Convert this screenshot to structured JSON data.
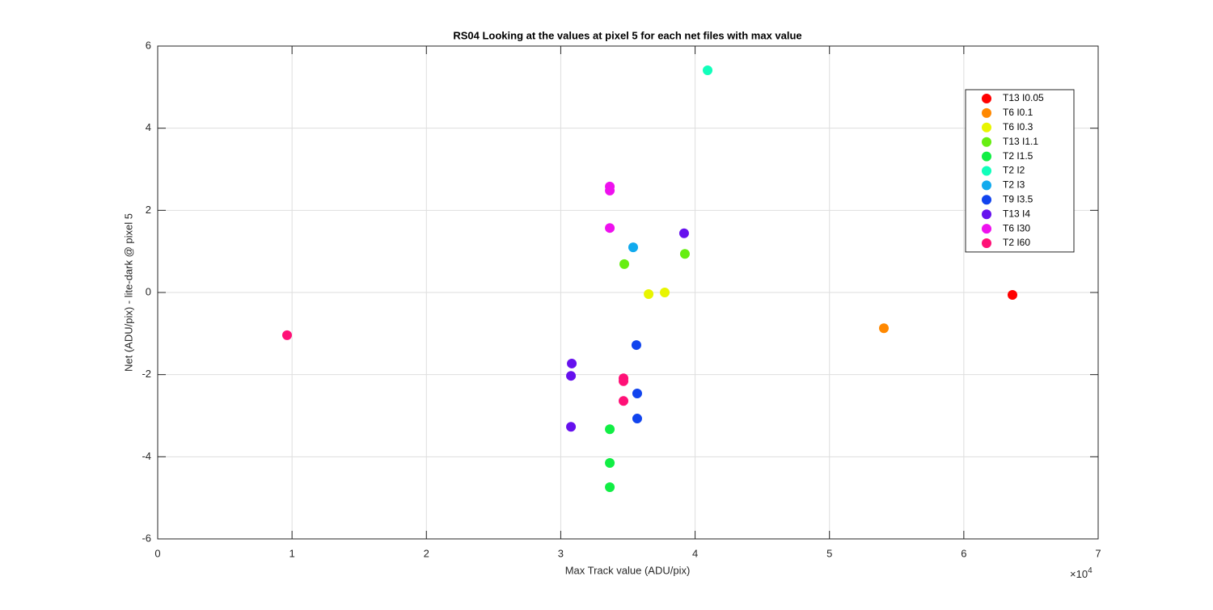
{
  "chart_data": {
    "type": "scatter",
    "title": "RS04  Looking at the values at pixel 5 for each net files with max value",
    "x_label": "Max Track value (ADU/pix)",
    "y_label": "Net (ADU/pix) - lite-dark @ pixel 5",
    "x_multiplier": {
      "base": "×10",
      "exponent": "4"
    },
    "xlim": [
      0,
      7
    ],
    "xticks": [
      0,
      1,
      2,
      3,
      4,
      5,
      6,
      7
    ],
    "ylim": [
      -6,
      6
    ],
    "yticks": [
      -6,
      -4,
      -2,
      0,
      2,
      4,
      6
    ],
    "grid": true,
    "legend": "northeast",
    "series": [
      {
        "name": "T13 I0.05",
        "color": "#ff0000",
        "x": [
          6.362
        ],
        "values": [
          -0.06
        ]
      },
      {
        "name": "T6 I0.1",
        "color": "#ff8800",
        "x": [
          5.405
        ],
        "values": [
          -0.87
        ]
      },
      {
        "name": "T6 I0.3",
        "color": "#e8f500",
        "x": [
          3.654,
          3.774
        ],
        "values": [
          -0.04,
          0.0
        ]
      },
      {
        "name": "T13 I1.1",
        "color": "#66ee11",
        "x": [
          3.473,
          3.924
        ],
        "values": [
          0.69,
          0.94
        ]
      },
      {
        "name": "T2 I1.5",
        "color": "#11ee44",
        "x": [
          3.365,
          3.365,
          3.365
        ],
        "values": [
          -3.33,
          -4.15,
          -4.74
        ]
      },
      {
        "name": "T2 I2",
        "color": "#11ffbb",
        "x": [
          4.093
        ],
        "values": [
          5.41
        ]
      },
      {
        "name": "T2 I3",
        "color": "#11aaee",
        "x": [
          3.539
        ],
        "values": [
          1.1
        ]
      },
      {
        "name": "T9 I3.5",
        "color": "#1144ee",
        "x": [
          3.563,
          3.569,
          3.569
        ],
        "values": [
          -1.28,
          -2.46,
          -3.07
        ]
      },
      {
        "name": "T13 I4",
        "color": "#6611ee",
        "x": [
          3.918,
          3.082,
          3.076,
          3.076
        ],
        "values": [
          1.44,
          -1.73,
          -2.03,
          -3.27
        ]
      },
      {
        "name": "T6 I30",
        "color": "#ee11ee",
        "x": [
          3.365,
          3.365,
          3.365
        ],
        "values": [
          2.58,
          2.48,
          1.57
        ]
      },
      {
        "name": "T2 I60",
        "color": "#ff1177",
        "x": [
          0.963,
          3.467,
          3.467,
          3.467
        ],
        "values": [
          -1.04,
          -2.09,
          -2.16,
          -2.64
        ]
      }
    ]
  }
}
